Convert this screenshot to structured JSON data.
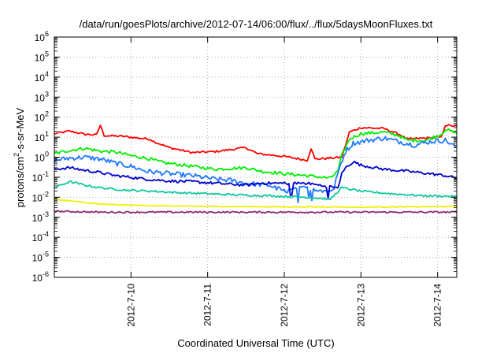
{
  "chart_data": {
    "type": "line",
    "title": "/data/run/goesPlots/archive/2012-07-14/06:00/flux/../flux/5daysMoonFluxes.txt",
    "xlabel": "Coordinated Universal Time (UTC)",
    "ylabel": {
      "prefix": "protons/cm",
      "sup": "2",
      "suffix": "-s-sr-MeV"
    },
    "x_unit": "days since 2012-07-09 00:00 UTC",
    "xlim": [
      0.0,
      5.25
    ],
    "x_ticks": [
      {
        "x": 1,
        "label": "2012-7-10"
      },
      {
        "x": 2,
        "label": "2012-7-11"
      },
      {
        "x": 3,
        "label": "2012-7-12"
      },
      {
        "x": 4,
        "label": "2012-7-13"
      },
      {
        "x": 5,
        "label": "2012-7-14"
      }
    ],
    "y_scale": "log",
    "ylim_exp": [
      -6,
      6
    ],
    "y_tick_exponents": [
      -6,
      -5,
      -4,
      -3,
      -2,
      -1,
      0,
      1,
      2,
      3,
      4,
      5,
      6
    ],
    "y_tick_base": "10",
    "grid": true,
    "legend": "none",
    "series": [
      {
        "color": "#ff0000",
        "points": [
          [
            0.0,
            15
          ],
          [
            0.2,
            20
          ],
          [
            0.4,
            14
          ],
          [
            0.55,
            13
          ],
          [
            0.6,
            40
          ],
          [
            0.65,
            12
          ],
          [
            0.9,
            11
          ],
          [
            1.1,
            9
          ],
          [
            1.25,
            8
          ],
          [
            1.3,
            6
          ],
          [
            1.5,
            3
          ],
          [
            1.8,
            1.7
          ],
          [
            2.1,
            1.9
          ],
          [
            2.3,
            2.4
          ],
          [
            2.5,
            3
          ],
          [
            2.65,
            1.5
          ],
          [
            3.0,
            1.1
          ],
          [
            3.3,
            0.7
          ],
          [
            3.35,
            2.8
          ],
          [
            3.4,
            0.8
          ],
          [
            3.6,
            0.9
          ],
          [
            3.75,
            1.0
          ],
          [
            3.8,
            4
          ],
          [
            3.85,
            18
          ],
          [
            4.0,
            30
          ],
          [
            4.3,
            27
          ],
          [
            4.5,
            14
          ],
          [
            4.6,
            8
          ],
          [
            4.85,
            9
          ],
          [
            5.05,
            10
          ],
          [
            5.1,
            40
          ],
          [
            5.25,
            35
          ]
        ]
      },
      {
        "color": "#00ee00",
        "points": [
          [
            0.0,
            1.5
          ],
          [
            0.2,
            2.2
          ],
          [
            0.4,
            2.8
          ],
          [
            0.6,
            2.0
          ],
          [
            0.8,
            1.8
          ],
          [
            1.0,
            1.2
          ],
          [
            1.2,
            0.9
          ],
          [
            1.4,
            0.55
          ],
          [
            1.8,
            0.35
          ],
          [
            2.1,
            0.25
          ],
          [
            2.5,
            0.3
          ],
          [
            2.7,
            0.2
          ],
          [
            3.0,
            0.15
          ],
          [
            3.3,
            0.12
          ],
          [
            3.6,
            0.09
          ],
          [
            3.7,
            0.2
          ],
          [
            3.75,
            1.2
          ],
          [
            3.85,
            8
          ],
          [
            4.0,
            15
          ],
          [
            4.3,
            18
          ],
          [
            4.5,
            12
          ],
          [
            4.6,
            7
          ],
          [
            4.85,
            7
          ],
          [
            5.05,
            14
          ],
          [
            5.1,
            25
          ],
          [
            5.25,
            15
          ]
        ]
      },
      {
        "color": "#1e78ff",
        "points": [
          [
            0.0,
            0.7
          ],
          [
            0.2,
            0.9
          ],
          [
            0.4,
            1.0
          ],
          [
            0.6,
            0.8
          ],
          [
            0.8,
            0.5
          ],
          [
            1.0,
            0.35
          ],
          [
            1.2,
            0.2
          ],
          [
            1.5,
            0.15
          ],
          [
            1.8,
            0.12
          ],
          [
            2.1,
            0.08
          ],
          [
            2.3,
            0.07
          ],
          [
            2.5,
            0.05
          ],
          [
            2.8,
            0.04
          ],
          [
            3.0,
            0.02
          ],
          [
            3.3,
            0.03
          ],
          [
            3.6,
            0.02
          ],
          [
            3.65,
            0.03
          ],
          [
            3.72,
            0.3
          ],
          [
            3.8,
            2.0
          ],
          [
            3.9,
            5
          ],
          [
            4.1,
            7
          ],
          [
            4.3,
            9
          ],
          [
            4.5,
            6
          ],
          [
            4.7,
            4
          ],
          [
            4.9,
            6
          ],
          [
            5.1,
            7
          ],
          [
            5.25,
            3
          ]
        ]
      },
      {
        "color": "#0000cc",
        "points": [
          [
            0.0,
            0.25
          ],
          [
            0.2,
            0.3
          ],
          [
            0.4,
            0.22
          ],
          [
            0.6,
            0.17
          ],
          [
            0.8,
            0.12
          ],
          [
            1.0,
            0.1
          ],
          [
            1.2,
            0.08
          ],
          [
            1.5,
            0.065
          ],
          [
            1.8,
            0.06
          ],
          [
            2.1,
            0.05
          ],
          [
            2.5,
            0.04
          ],
          [
            2.7,
            0.05
          ],
          [
            3.0,
            0.05
          ],
          [
            3.3,
            0.05
          ],
          [
            3.55,
            0.035
          ],
          [
            3.7,
            0.03
          ],
          [
            3.75,
            0.15
          ],
          [
            3.8,
            0.3
          ],
          [
            3.9,
            0.6
          ],
          [
            4.0,
            0.4
          ],
          [
            4.3,
            0.25
          ],
          [
            4.6,
            0.2
          ],
          [
            4.9,
            0.15
          ],
          [
            5.1,
            0.12
          ],
          [
            5.25,
            0.09
          ]
        ]
      },
      {
        "color": "#10c8a0",
        "points": [
          [
            0.0,
            0.03
          ],
          [
            0.2,
            0.06
          ],
          [
            0.4,
            0.04
          ],
          [
            0.6,
            0.03
          ],
          [
            0.8,
            0.025
          ],
          [
            1.0,
            0.022
          ],
          [
            1.3,
            0.02
          ],
          [
            1.6,
            0.017
          ],
          [
            2.0,
            0.015
          ],
          [
            2.4,
            0.013
          ],
          [
            2.8,
            0.012
          ],
          [
            3.0,
            0.011
          ],
          [
            3.3,
            0.01
          ],
          [
            3.6,
            0.008
          ],
          [
            3.75,
            0.03
          ],
          [
            4.0,
            0.02
          ],
          [
            4.4,
            0.015
          ],
          [
            4.8,
            0.012
          ],
          [
            5.25,
            0.011
          ]
        ]
      },
      {
        "color": "#f0f000",
        "points": [
          [
            0.0,
            0.008
          ],
          [
            0.3,
            0.006
          ],
          [
            0.6,
            0.0045
          ],
          [
            1.0,
            0.004
          ],
          [
            1.5,
            0.0037
          ],
          [
            2.0,
            0.0035
          ],
          [
            2.5,
            0.0034
          ],
          [
            3.0,
            0.0033
          ],
          [
            3.5,
            0.0033
          ],
          [
            4.0,
            0.0032
          ],
          [
            4.5,
            0.0033
          ],
          [
            5.0,
            0.0034
          ],
          [
            5.25,
            0.0035
          ]
        ]
      },
      {
        "color": "#8c2c78",
        "points": [
          [
            0.0,
            0.002
          ],
          [
            0.3,
            0.0019
          ],
          [
            0.6,
            0.0018
          ],
          [
            1.0,
            0.0018
          ],
          [
            1.5,
            0.0018
          ],
          [
            2.0,
            0.0018
          ],
          [
            2.5,
            0.0018
          ],
          [
            3.0,
            0.0018
          ],
          [
            3.5,
            0.0018
          ],
          [
            4.0,
            0.0018
          ],
          [
            4.5,
            0.0018
          ],
          [
            5.0,
            0.0018
          ],
          [
            5.25,
            0.0018
          ]
        ]
      }
    ]
  }
}
